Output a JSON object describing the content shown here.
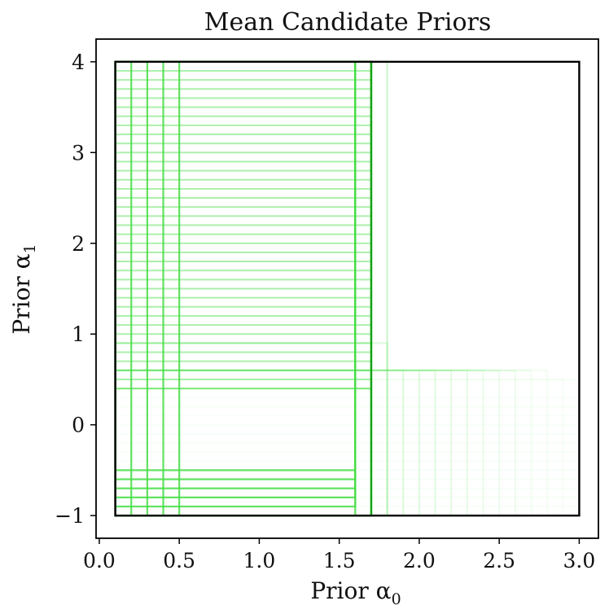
{
  "chart_data": {
    "type": "rectangles",
    "title": "Mean Candidate Priors",
    "xlabel": "Prior α",
    "xlabel_sub": "0",
    "ylabel": "Prior α",
    "ylabel_sub": "1",
    "xlim": [
      -0.02,
      3.12
    ],
    "ylim": [
      -1.25,
      4.25
    ],
    "xticks": [
      0.0,
      0.5,
      1.0,
      1.5,
      2.0,
      2.5,
      3.0
    ],
    "xtick_labels": [
      "0.0",
      "0.5",
      "1.0",
      "1.5",
      "2.0",
      "2.5",
      "3.0"
    ],
    "yticks": [
      -1,
      0,
      1,
      2,
      3,
      4
    ],
    "ytick_labels": [
      "−1",
      "0",
      "1",
      "2",
      "3",
      "4"
    ],
    "grid": false,
    "colors": {
      "bounds": "#000000",
      "bright": "#44dd44",
      "dark": "#119911",
      "faint": "#88ee88"
    },
    "bounds_box": {
      "x0": 0.1,
      "x1": 3.0,
      "y0": -1.0,
      "y1": 4.0
    },
    "bright_rectangles": [
      {
        "x0": 0.1,
        "x1": 1.7,
        "y0": -1.0,
        "y1": 4.0
      },
      {
        "x0": 0.1,
        "x1": 1.6,
        "y0": -1.0,
        "y1": 4.0
      },
      {
        "x0": 0.1,
        "x1": 1.6,
        "y0": -0.9,
        "y1": 4.0
      },
      {
        "x0": 0.1,
        "x1": 1.6,
        "y0": -0.8,
        "y1": 4.0
      },
      {
        "x0": 0.1,
        "x1": 1.6,
        "y0": -0.7,
        "y1": 4.0
      },
      {
        "x0": 0.1,
        "x1": 1.6,
        "y0": -0.6,
        "y1": 4.0
      },
      {
        "x0": 0.1,
        "x1": 1.6,
        "y0": -0.5,
        "y1": 4.0
      },
      {
        "x0": 0.2,
        "x1": 1.7,
        "y0": -1.0,
        "y1": 4.0
      },
      {
        "x0": 0.3,
        "x1": 1.7,
        "y0": -1.0,
        "y1": 4.0
      },
      {
        "x0": 0.4,
        "x1": 1.7,
        "y0": -1.0,
        "y1": 4.0
      },
      {
        "x0": 0.5,
        "x1": 1.7,
        "y0": -1.0,
        "y1": 4.0
      }
    ],
    "column_rectangles": {
      "x0": 0.1,
      "y0": -1.0,
      "y1": 4.0,
      "x1_values": [
        1.7,
        1.7,
        1.7,
        1.7,
        1.8,
        1.8,
        1.8
      ],
      "opacities": [
        0.35,
        0.3,
        0.25,
        0.2,
        0.12,
        0.1,
        0.08
      ]
    },
    "top_rectangles": {
      "x0": 0.1,
      "x1": 1.7,
      "y1": 4.0,
      "y0_values": [
        3.9,
        3.8,
        3.7,
        3.6,
        3.5,
        3.4,
        3.3,
        3.2,
        3.1,
        3.0,
        2.9,
        2.8,
        2.7,
        2.6,
        2.5,
        2.4,
        2.3,
        2.2,
        2.1,
        2.0,
        1.9,
        1.8,
        1.7,
        1.6,
        1.5,
        1.4,
        1.3,
        1.2,
        1.1,
        1.0,
        0.9,
        0.8,
        0.7,
        0.6,
        0.5,
        0.4,
        0.4
      ],
      "opacity": 0.45
    },
    "right_rectangles": {
      "x0": 0.1,
      "y0": -1.0,
      "x1_values": [
        1.8,
        1.9,
        2.0,
        2.1,
        2.2,
        2.3,
        2.4,
        2.5,
        2.6,
        2.7,
        2.8,
        2.9,
        3.0
      ],
      "y1_values": [
        0.9,
        0.6,
        0.6,
        0.6,
        0.6,
        0.6,
        0.6,
        0.6,
        0.6,
        0.6,
        0.6,
        0.5,
        0.5
      ],
      "opacities": [
        0.3,
        0.3,
        0.27,
        0.25,
        0.22,
        0.2,
        0.18,
        0.16,
        0.14,
        0.12,
        0.1,
        0.08,
        0.06
      ]
    },
    "faint_bottom_rectangles": {
      "x0": 0.1,
      "x1": 3.0,
      "y0": -1.0,
      "y1_values": [
        -0.9,
        -0.8,
        -0.7,
        -0.6,
        -0.5,
        -0.4,
        -0.3,
        -0.2,
        -0.1,
        0.0,
        0.1,
        0.2,
        0.3
      ],
      "opacity": 0.07
    }
  }
}
